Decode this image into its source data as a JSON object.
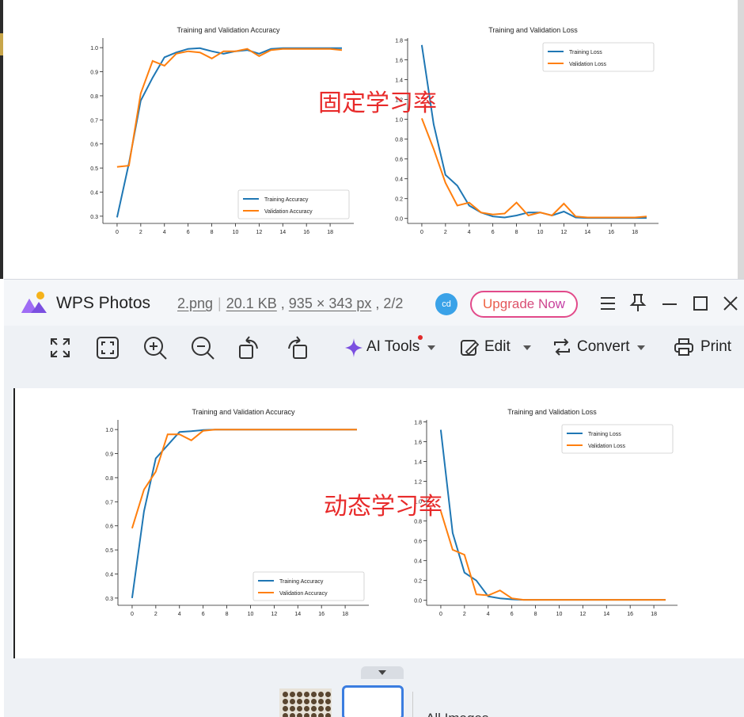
{
  "overlay": {
    "top_label": "固定学习率",
    "bottom_label": "动态学习率"
  },
  "viewer_app": {
    "app_name": "WPS Photos",
    "file_name": "2.png",
    "file_size": "20.1 KB",
    "dimensions": "935 × 343 px",
    "page_index": "2/2",
    "avatar_initials": "cd",
    "upgrade_label": "Upgrade Now",
    "toolbar": {
      "ai_tools_label": "AI Tools",
      "edit_label": "Edit",
      "convert_label": "Convert",
      "print_label": "Print"
    },
    "filmstrip": {
      "all_images_label": "All Images"
    },
    "colors": {
      "accent": "#3b7de0",
      "upgrade_start": "#f0603a",
      "upgrade_end": "#c23aa8",
      "overlay_text": "#e82a2a"
    }
  },
  "chart_data": [
    {
      "id": "top_acc",
      "type": "line",
      "title": "Training and Validation Accuracy",
      "xlabel": "",
      "ylabel": "",
      "xlim": [
        -1.2,
        20
      ],
      "ylim": [
        0.27,
        1.04
      ],
      "xticks": [
        0,
        2,
        4,
        6,
        8,
        10,
        12,
        14,
        16,
        18
      ],
      "yticks": [
        0.3,
        0.4,
        0.5,
        0.6,
        0.7,
        0.8,
        0.9,
        1.0
      ],
      "ytick_labels": [
        "0.3",
        "0.4",
        "0.5",
        "0.6",
        "0.7",
        "0.8",
        "0.9",
        "1.0"
      ],
      "legend_position": "lower-right",
      "grid": false,
      "x": [
        0,
        1,
        2,
        3,
        4,
        5,
        6,
        7,
        8,
        9,
        10,
        11,
        12,
        13,
        14,
        15,
        16,
        17,
        18,
        19
      ],
      "series": [
        {
          "name": "Training Accuracy",
          "color": "#1f77b4",
          "values": [
            0.295,
            0.52,
            0.78,
            0.875,
            0.96,
            0.98,
            0.995,
            0.998,
            0.985,
            0.975,
            0.985,
            0.99,
            0.975,
            0.995,
            0.998,
            0.998,
            0.998,
            0.998,
            0.998,
            0.998
          ]
        },
        {
          "name": "Validation Accuracy",
          "color": "#ff7f0e",
          "values": [
            0.505,
            0.51,
            0.81,
            0.945,
            0.925,
            0.975,
            0.985,
            0.98,
            0.955,
            0.985,
            0.985,
            0.995,
            0.965,
            0.99,
            0.995,
            0.995,
            0.995,
            0.995,
            0.995,
            0.99
          ]
        }
      ]
    },
    {
      "id": "top_loss",
      "type": "line",
      "title": "Training and Validation Loss",
      "xlabel": "",
      "ylabel": "",
      "xlim": [
        -1.2,
        20
      ],
      "ylim": [
        -0.05,
        1.82
      ],
      "xticks": [
        0,
        2,
        4,
        6,
        8,
        10,
        12,
        14,
        16,
        18
      ],
      "yticks": [
        0.0,
        0.2,
        0.4,
        0.6,
        0.8,
        1.0,
        1.2,
        1.4,
        1.6,
        1.8
      ],
      "ytick_labels": [
        "0.0",
        "0.2",
        "0.4",
        "0.6",
        "0.8",
        "1.0",
        "1.2",
        "1.4",
        "1.6",
        "1.8"
      ],
      "legend_position": "upper-right",
      "grid": false,
      "x": [
        0,
        1,
        2,
        3,
        4,
        5,
        6,
        7,
        8,
        9,
        10,
        11,
        12,
        13,
        14,
        15,
        16,
        17,
        18,
        19
      ],
      "series": [
        {
          "name": "Training Loss",
          "color": "#1f77b4",
          "values": [
            1.75,
            0.95,
            0.44,
            0.33,
            0.13,
            0.06,
            0.02,
            0.01,
            0.03,
            0.06,
            0.06,
            0.03,
            0.07,
            0.01,
            0.005,
            0.005,
            0.005,
            0.005,
            0.005,
            0.005
          ]
        },
        {
          "name": "Validation Loss",
          "color": "#ff7f0e",
          "values": [
            1.01,
            0.7,
            0.36,
            0.13,
            0.16,
            0.06,
            0.04,
            0.05,
            0.16,
            0.03,
            0.06,
            0.03,
            0.15,
            0.02,
            0.01,
            0.01,
            0.01,
            0.01,
            0.01,
            0.02
          ]
        }
      ]
    },
    {
      "id": "bottom_acc",
      "type": "line",
      "title": "Training and Validation Accuracy",
      "xlabel": "",
      "ylabel": "",
      "xlim": [
        -1.2,
        20
      ],
      "ylim": [
        0.27,
        1.04
      ],
      "xticks": [
        0,
        2,
        4,
        6,
        8,
        10,
        12,
        14,
        16,
        18
      ],
      "yticks": [
        0.3,
        0.4,
        0.5,
        0.6,
        0.7,
        0.8,
        0.9,
        1.0
      ],
      "ytick_labels": [
        "0.3",
        "0.4",
        "0.5",
        "0.6",
        "0.7",
        "0.8",
        "0.9",
        "1.0"
      ],
      "legend_position": "lower-right",
      "grid": false,
      "x": [
        0,
        1,
        2,
        3,
        4,
        5,
        6,
        7,
        8,
        9,
        10,
        11,
        12,
        13,
        14,
        15,
        16,
        17,
        18,
        19
      ],
      "series": [
        {
          "name": "Training Accuracy",
          "color": "#1f77b4",
          "values": [
            0.3,
            0.66,
            0.88,
            0.935,
            0.99,
            0.993,
            0.998,
            1.0,
            1.0,
            1.0,
            1.0,
            1.0,
            1.0,
            1.0,
            1.0,
            1.0,
            1.0,
            1.0,
            1.0,
            1.0
          ]
        },
        {
          "name": "Validation Accuracy",
          "color": "#ff7f0e",
          "values": [
            0.59,
            0.75,
            0.825,
            0.98,
            0.98,
            0.955,
            0.995,
            1.0,
            1.0,
            1.0,
            1.0,
            1.0,
            1.0,
            1.0,
            1.0,
            1.0,
            1.0,
            1.0,
            1.0,
            1.0
          ]
        }
      ]
    },
    {
      "id": "bottom_loss",
      "type": "line",
      "title": "Training and Validation Loss",
      "xlabel": "",
      "ylabel": "",
      "xlim": [
        -1.2,
        20
      ],
      "ylim": [
        -0.05,
        1.82
      ],
      "xticks": [
        0,
        2,
        4,
        6,
        8,
        10,
        12,
        14,
        16,
        18
      ],
      "yticks": [
        0.0,
        0.2,
        0.4,
        0.6,
        0.8,
        1.0,
        1.2,
        1.4,
        1.6,
        1.8
      ],
      "ytick_labels": [
        "0.0",
        "0.2",
        "0.4",
        "0.6",
        "0.8",
        "1.0",
        "1.2",
        "1.4",
        "1.6",
        "1.8"
      ],
      "legend_position": "upper-right",
      "grid": false,
      "x": [
        0,
        1,
        2,
        3,
        4,
        5,
        6,
        7,
        8,
        9,
        10,
        11,
        12,
        13,
        14,
        15,
        16,
        17,
        18,
        19
      ],
      "series": [
        {
          "name": "Training Loss",
          "color": "#1f77b4",
          "values": [
            1.72,
            0.68,
            0.28,
            0.2,
            0.04,
            0.02,
            0.01,
            0.005,
            0.005,
            0.005,
            0.005,
            0.005,
            0.005,
            0.005,
            0.005,
            0.005,
            0.005,
            0.005,
            0.005,
            0.005
          ]
        },
        {
          "name": "Validation Loss",
          "color": "#ff7f0e",
          "values": [
            0.9,
            0.51,
            0.46,
            0.06,
            0.05,
            0.1,
            0.02,
            0.005,
            0.005,
            0.005,
            0.005,
            0.005,
            0.005,
            0.005,
            0.005,
            0.005,
            0.005,
            0.005,
            0.005,
            0.005
          ]
        }
      ]
    }
  ]
}
